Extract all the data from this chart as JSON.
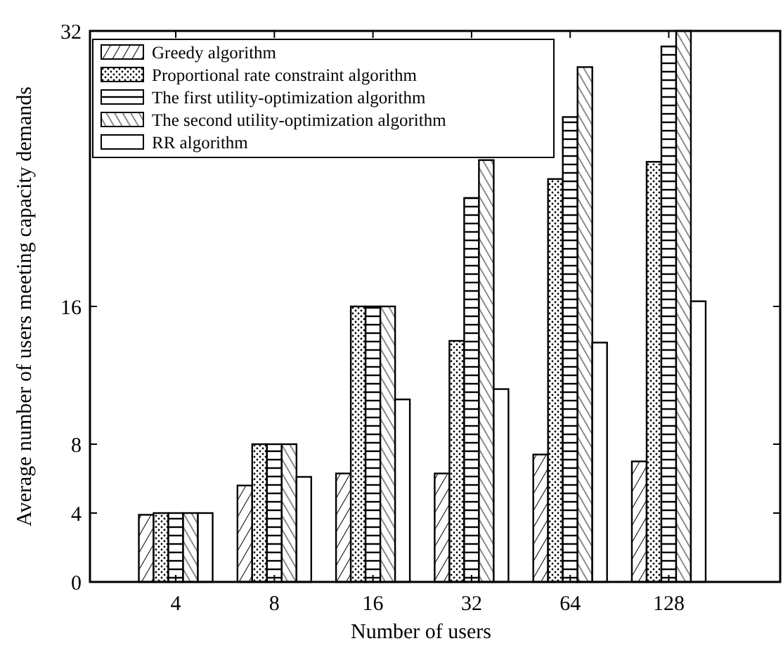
{
  "chart_data": {
    "type": "bar",
    "xlabel": "Number of users",
    "ylabel": "Average number of users meeting capacity demands",
    "categories": [
      "4",
      "8",
      "16",
      "32",
      "64",
      "128"
    ],
    "series": [
      {
        "name": "Greedy algorithm",
        "color": "#000000",
        "values": [
          3.9,
          5.6,
          6.3,
          6.3,
          7.4,
          7.0
        ]
      },
      {
        "name": "Proportional rate constraint algorithm",
        "color": "#000000",
        "values": [
          4,
          8,
          16,
          14,
          23.4,
          24.4
        ]
      },
      {
        "name": "The first utility-optimization algorithm",
        "color": "#000000",
        "values": [
          4,
          8,
          16,
          22.3,
          27,
          31.1
        ]
      },
      {
        "name": "The second utility-optimization algorithm",
        "color": "#000000",
        "values": [
          4,
          8,
          16,
          24.5,
          29.9,
          32
        ]
      },
      {
        "name": "RR algorithm",
        "color": "#000000",
        "values": [
          4,
          6.1,
          10.6,
          11.2,
          13.9,
          16.3
        ]
      }
    ],
    "ylim": [
      0,
      32
    ],
    "yticks": [
      0,
      4,
      8,
      16,
      32
    ],
    "grid": false,
    "legend": "top left"
  }
}
